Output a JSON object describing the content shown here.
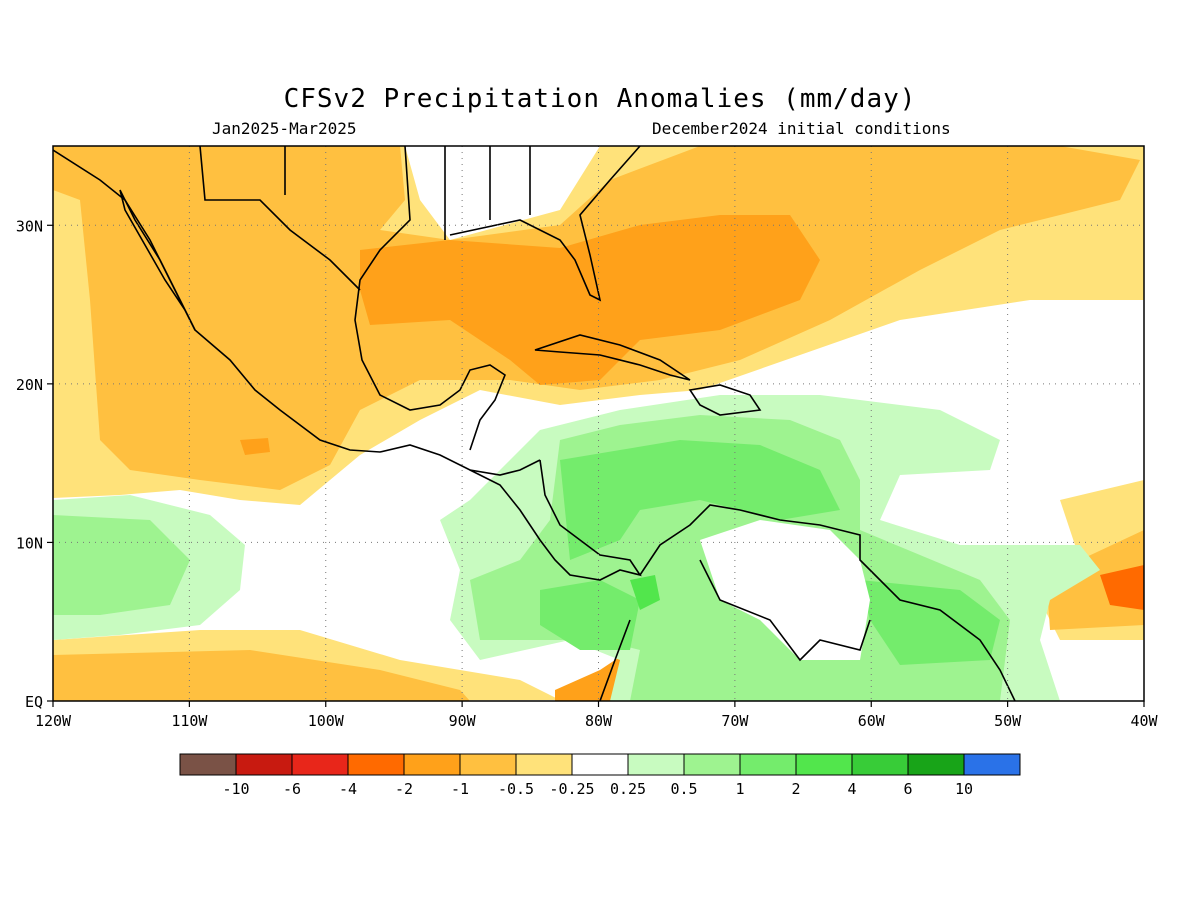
{
  "title": "CFSv2 Precipitation Anomalies (mm/day)",
  "subtitle_left": "Jan2025-Mar2025",
  "subtitle_right": "December2024 initial conditions",
  "map": {
    "lon_range": [
      -120,
      -40
    ],
    "lat_range": [
      0,
      35
    ],
    "lon_ticks": [
      -120,
      -110,
      -100,
      -90,
      -80,
      -70,
      -60,
      -50,
      -40
    ],
    "lon_labels": [
      "120W",
      "110W",
      "100W",
      "90W",
      "80W",
      "70W",
      "60W",
      "50W",
      "40W"
    ],
    "lat_ticks": [
      0,
      10,
      20,
      30
    ],
    "lat_labels": [
      "EQ",
      "10N",
      "20N",
      "30N"
    ],
    "gridlines": "dotted"
  },
  "legend": {
    "colors": [
      "#7a5246",
      "#c81a10",
      "#e8261a",
      "#ff6a00",
      "#ffa11a",
      "#ffc040",
      "#ffe27a",
      "#ffffff",
      "#c8fbc0",
      "#9ef390",
      "#74ec6c",
      "#52e64c",
      "#38cc38",
      "#18a418",
      "#2a72e8"
    ],
    "labels": [
      "-10",
      "-6",
      "-4",
      "-2",
      "-1",
      "-0.5",
      "-0.25",
      "0.25",
      "0.5",
      "1",
      "2",
      "4",
      "6",
      "10"
    ]
  }
}
